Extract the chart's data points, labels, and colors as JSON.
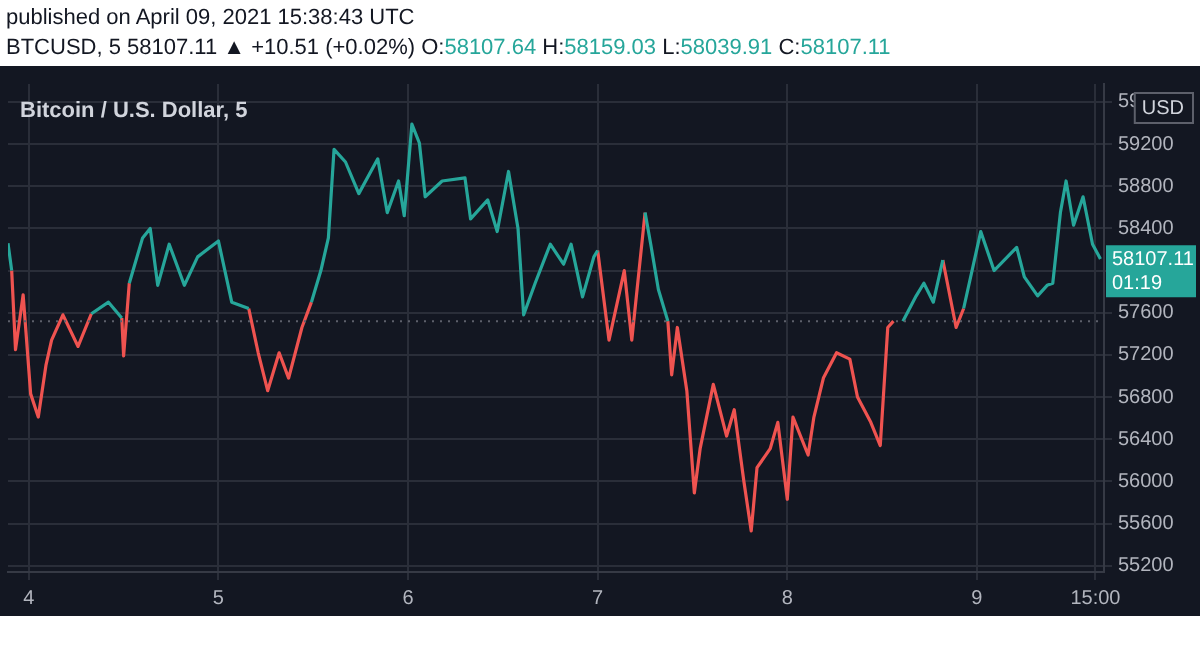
{
  "chart_data": {
    "type": "line",
    "title": "Bitcoin / U.S. Dollar, 5",
    "subtitle": "BTCUSD, 5  58107.11 ▲ +10.51 (+0.02%) O:58107.64 H:58159.03 L:58039.91 C:58107.11",
    "ylabel": "USD",
    "annotations": [
      "published on April 09, 2021 15:38:43 UTC",
      {
        "text": "58107.11",
        "x": "2021-04-09T15:38",
        "y": 58107.11
      },
      "01:19"
    ],
    "x": [
      "2021-04-03T21:22",
      "2021-04-03T21:50",
      "2021-04-03T22:19",
      "2021-04-03T23:17",
      "2021-04-04T00:14",
      "2021-04-04T01:12",
      "2021-04-04T02:10",
      "2021-04-04T02:53",
      "2021-04-04T04:19",
      "2021-04-04T06:14",
      "2021-04-04T07:55",
      "2021-04-04T10:05",
      "2021-04-04T11:46",
      "2021-04-04T12:00",
      "2021-04-04T12:43",
      "2021-04-04T14:24",
      "2021-04-04T15:22",
      "2021-04-04T16:19",
      "2021-04-04T17:46",
      "2021-04-04T19:41",
      "2021-04-04T21:22",
      "2021-04-05T00:00",
      "2021-04-05T01:41",
      "2021-04-05T03:50",
      "2021-04-05T05:02",
      "2021-04-05T06:14",
      "2021-04-05T07:41",
      "2021-04-05T08:53",
      "2021-04-05T10:34",
      "2021-04-05T11:46",
      "2021-04-05T12:58",
      "2021-04-05T13:55",
      "2021-04-05T14:38",
      "2021-04-05T16:05",
      "2021-04-05T17:46",
      "2021-04-05T20:10",
      "2021-04-05T21:22",
      "2021-04-05T22:48",
      "2021-04-05T23:31",
      "2021-04-06T00:29",
      "2021-04-06T01:26",
      "2021-04-06T02:10",
      "2021-04-06T04:19",
      "2021-04-06T07:12",
      "2021-04-06T07:55",
      "2021-04-06T10:05",
      "2021-04-06T11:17",
      "2021-04-06T12:43",
      "2021-04-06T13:55",
      "2021-04-06T14:38",
      "2021-04-06T16:05",
      "2021-04-06T18:00",
      "2021-04-06T19:41",
      "2021-04-06T20:38",
      "2021-04-06T22:05",
      "2021-04-06T23:31",
      "2021-04-07T00:00",
      "2021-04-07T01:26",
      "2021-04-07T03:22",
      "2021-04-07T04:19",
      "2021-04-07T06:00",
      "2021-04-07T06:43",
      "2021-04-07T07:41",
      "2021-04-07T08:53",
      "2021-04-07T09:22",
      "2021-04-07T10:05",
      "2021-04-07T11:17",
      "2021-04-07T12:14",
      "2021-04-07T12:58",
      "2021-04-07T14:38",
      "2021-04-07T16:19",
      "2021-04-07T17:17",
      "2021-04-07T18:29",
      "2021-04-07T19:26",
      "2021-04-07T20:10",
      "2021-04-07T21:50",
      "2021-04-07T22:48",
      "2021-04-08T00:00",
      "2021-04-08T00:43",
      "2021-04-08T02:38",
      "2021-04-08T03:22",
      "2021-04-08T04:34",
      "2021-04-08T06:14",
      "2021-04-08T07:55",
      "2021-04-08T08:53",
      "2021-04-08T10:34",
      "2021-04-08T11:46",
      "2021-04-08T12:43",
      "2021-04-08T13:26",
      "2021-04-08T14:38",
      "2021-04-08T16:19",
      "2021-04-08T17:17",
      "2021-04-08T18:29",
      "2021-04-08T19:41",
      "2021-04-08T21:22",
      "2021-04-08T22:19",
      "2021-04-09T00:29",
      "2021-04-09T02:10",
      "2021-04-09T05:02",
      "2021-04-09T06:00",
      "2021-04-09T07:41",
      "2021-04-09T08:53",
      "2021-04-09T09:36",
      "2021-04-09T10:34",
      "2021-04-09T11:17",
      "2021-04-09T12:14",
      "2021-04-09T13:26",
      "2021-04-09T14:38",
      "2021-04-09T15:38"
    ],
    "series": [
      {
        "color": "#26a69a",
        "values": [
          58260,
          58000,
          null,
          null,
          null,
          null,
          null,
          null,
          null,
          null,
          57590,
          57700,
          57550,
          null,
          57880,
          58310,
          58400,
          57860,
          58250,
          57860,
          58130,
          58280,
          57700,
          57640,
          null,
          null,
          null,
          null,
          null,
          57700,
          58000,
          58310,
          59150,
          59030,
          58730,
          59060,
          58550,
          58850,
          58520,
          59390,
          59210,
          58700,
          58850,
          58880,
          58490,
          58670,
          58370,
          58940,
          58400,
          57580,
          57880,
          58250,
          58060,
          58250,
          57750,
          58130,
          58190,
          null,
          null,
          null,
          58550,
          58250,
          57820,
          57520,
          null,
          null,
          null,
          null,
          null,
          null,
          null,
          null,
          null,
          null,
          null,
          null,
          null,
          null,
          null,
          null,
          null,
          null,
          null,
          null,
          null,
          null,
          null,
          null,
          null,
          57520,
          57760,
          57880,
          57700,
          58100,
          null,
          57640,
          58370,
          58000,
          58220,
          57940,
          57760,
          57860,
          57880,
          58550,
          58850,
          58430,
          58700,
          58250,
          58110
        ]
      },
      {
        "color": "#ef5350",
        "values": [
          null,
          58000,
          57250,
          57770,
          56830,
          56610,
          57100,
          57340,
          57580,
          57280,
          57590,
          null,
          57550,
          57190,
          57880,
          null,
          null,
          null,
          null,
          null,
          null,
          null,
          null,
          57640,
          57220,
          56860,
          57220,
          56980,
          57460,
          57700,
          null,
          null,
          null,
          null,
          null,
          null,
          null,
          null,
          null,
          null,
          null,
          null,
          null,
          null,
          null,
          null,
          null,
          null,
          null,
          null,
          null,
          null,
          null,
          null,
          null,
          null,
          58190,
          57340,
          58000,
          57340,
          58550,
          null,
          null,
          57520,
          57010,
          57460,
          56860,
          55890,
          56310,
          56920,
          56430,
          56680,
          56010,
          55530,
          56130,
          56310,
          56560,
          55830,
          56610,
          56250,
          56610,
          56980,
          57220,
          57160,
          56800,
          56560,
          56340,
          57460,
          57520,
          null,
          null,
          null,
          null,
          58100,
          57460,
          57640,
          null,
          null,
          null,
          null,
          null,
          null,
          null,
          null,
          null,
          null,
          null,
          null,
          null
        ]
      }
    ],
    "ref_lines": [
      {
        "axis": "y",
        "value": 57520,
        "color": "#5d606b",
        "line_style": "dotted"
      }
    ],
    "xlim": [
      "2021-04-03T21:22",
      "2021-04-09T16:05"
    ],
    "xticks": [
      {
        "value": "2021-04-04T00:00",
        "label": "4"
      },
      {
        "value": "2021-04-05T00:00",
        "label": "5"
      },
      {
        "value": "2021-04-06T00:00",
        "label": "6"
      },
      {
        "value": "2021-04-07T00:00",
        "label": "7"
      },
      {
        "value": "2021-04-08T00:00",
        "label": "8"
      },
      {
        "value": "2021-04-09T00:00",
        "label": "9"
      },
      {
        "value": "2021-04-09T15:00",
        "label": "15:00"
      }
    ],
    "ylim": [
      55140,
      59770
    ],
    "yticks": [
      55200,
      55600,
      56000,
      56400,
      56800,
      57200,
      57600,
      {
        "value": 58000,
        "label": null
      },
      58400,
      58800,
      59200,
      59600
    ],
    "grid": true,
    "marker": "none",
    "line_style": "solid"
  }
}
